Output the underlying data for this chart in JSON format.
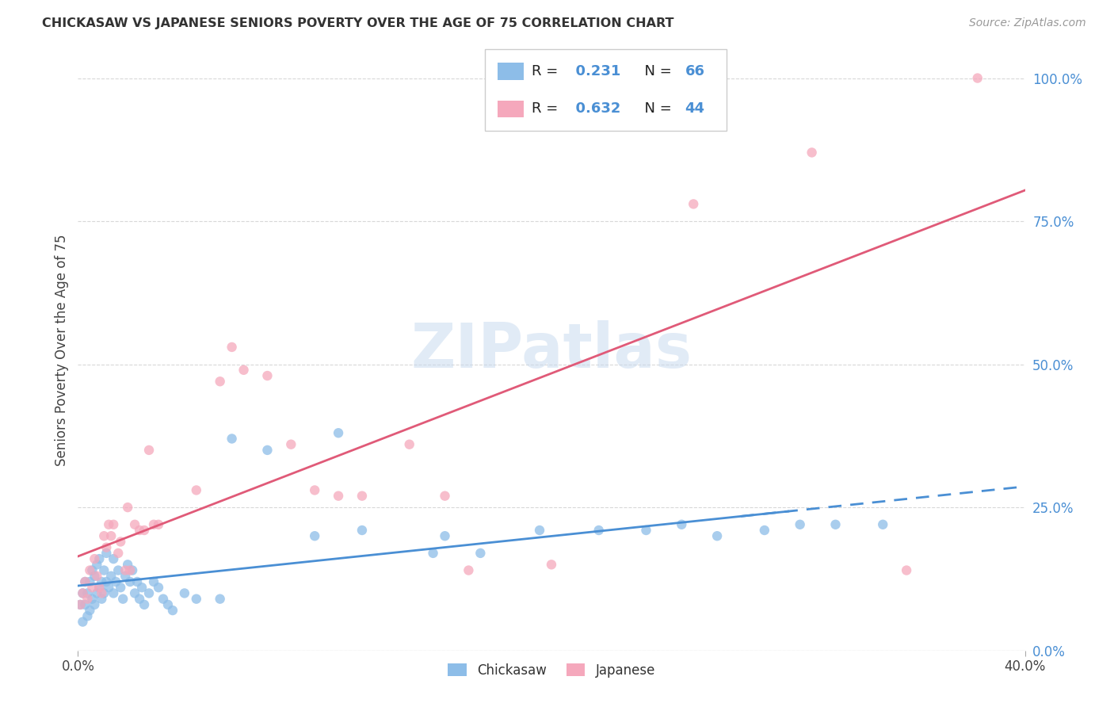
{
  "title": "CHICKASAW VS JAPANESE SENIORS POVERTY OVER THE AGE OF 75 CORRELATION CHART",
  "source": "Source: ZipAtlas.com",
  "ylabel": "Seniors Poverty Over the Age of 75",
  "chickasaw_R": 0.231,
  "chickasaw_N": 66,
  "japanese_R": 0.632,
  "japanese_N": 44,
  "chickasaw_color": "#8dbde8",
  "japanese_color": "#f5a8bc",
  "chickasaw_line_color": "#4a8fd4",
  "japanese_line_color": "#e05a78",
  "watermark": "ZIPatlas",
  "background_color": "#ffffff",
  "grid_color": "#d8d8d8",
  "xlim": [
    0.0,
    0.4
  ],
  "ylim": [
    0.0,
    1.05
  ],
  "right_yticks": [
    0.0,
    0.25,
    0.5,
    0.75,
    1.0
  ],
  "right_yticklabels": [
    "0.0%",
    "25.0%",
    "50.0%",
    "75.0%",
    "100.0%"
  ],
  "xtick_positions": [
    0.0,
    0.4
  ],
  "xtick_labels": [
    "0.0%",
    "40.0%"
  ],
  "chickasaw_x": [
    0.001,
    0.002,
    0.002,
    0.003,
    0.003,
    0.004,
    0.004,
    0.005,
    0.005,
    0.006,
    0.006,
    0.007,
    0.007,
    0.008,
    0.008,
    0.009,
    0.009,
    0.01,
    0.01,
    0.011,
    0.011,
    0.012,
    0.012,
    0.013,
    0.014,
    0.015,
    0.015,
    0.016,
    0.017,
    0.018,
    0.019,
    0.02,
    0.021,
    0.022,
    0.023,
    0.024,
    0.025,
    0.026,
    0.027,
    0.028,
    0.03,
    0.032,
    0.034,
    0.036,
    0.038,
    0.04,
    0.045,
    0.05,
    0.06,
    0.065,
    0.08,
    0.1,
    0.11,
    0.12,
    0.15,
    0.155,
    0.17,
    0.195,
    0.22,
    0.24,
    0.255,
    0.27,
    0.29,
    0.305,
    0.32,
    0.34
  ],
  "chickasaw_y": [
    0.08,
    0.05,
    0.1,
    0.08,
    0.12,
    0.06,
    0.1,
    0.07,
    0.12,
    0.09,
    0.14,
    0.08,
    0.13,
    0.1,
    0.15,
    0.11,
    0.16,
    0.09,
    0.12,
    0.1,
    0.14,
    0.12,
    0.17,
    0.11,
    0.13,
    0.1,
    0.16,
    0.12,
    0.14,
    0.11,
    0.09,
    0.13,
    0.15,
    0.12,
    0.14,
    0.1,
    0.12,
    0.09,
    0.11,
    0.08,
    0.1,
    0.12,
    0.11,
    0.09,
    0.08,
    0.07,
    0.1,
    0.09,
    0.09,
    0.37,
    0.35,
    0.2,
    0.38,
    0.21,
    0.17,
    0.2,
    0.17,
    0.21,
    0.21,
    0.21,
    0.22,
    0.2,
    0.21,
    0.22,
    0.22,
    0.22
  ],
  "japanese_x": [
    0.001,
    0.002,
    0.003,
    0.004,
    0.005,
    0.006,
    0.007,
    0.008,
    0.009,
    0.01,
    0.011,
    0.012,
    0.013,
    0.014,
    0.015,
    0.017,
    0.018,
    0.02,
    0.021,
    0.022,
    0.024,
    0.026,
    0.028,
    0.03,
    0.032,
    0.034,
    0.05,
    0.06,
    0.065,
    0.07,
    0.08,
    0.09,
    0.1,
    0.11,
    0.12,
    0.14,
    0.155,
    0.165,
    0.2,
    0.24,
    0.26,
    0.31,
    0.35,
    0.38
  ],
  "japanese_y": [
    0.08,
    0.1,
    0.12,
    0.09,
    0.14,
    0.11,
    0.16,
    0.13,
    0.11,
    0.1,
    0.2,
    0.18,
    0.22,
    0.2,
    0.22,
    0.17,
    0.19,
    0.14,
    0.25,
    0.14,
    0.22,
    0.21,
    0.21,
    0.35,
    0.22,
    0.22,
    0.28,
    0.47,
    0.53,
    0.49,
    0.48,
    0.36,
    0.28,
    0.27,
    0.27,
    0.36,
    0.27,
    0.14,
    0.15,
    0.95,
    0.78,
    0.87,
    0.14,
    1.0
  ],
  "chickasaw_line_intercept": 0.1,
  "chickasaw_line_slope": 0.32,
  "japanese_line_intercept": 0.08,
  "japanese_line_slope": 2.15
}
